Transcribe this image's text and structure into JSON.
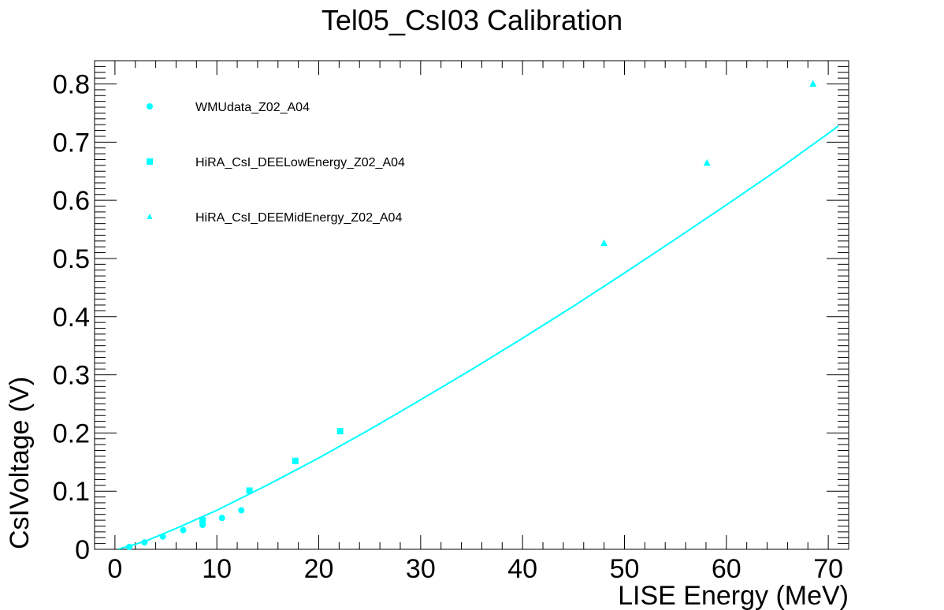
{
  "chart_data": {
    "type": "scatter",
    "title": "Tel05_CsI03 Calibration",
    "xlabel": "LISE Energy (MeV)",
    "ylabel": "CsIVoltage (V)",
    "xlim": [
      -2,
      72
    ],
    "ylim": [
      0,
      0.84
    ],
    "x_ticks": [
      0,
      10,
      20,
      30,
      40,
      50,
      60,
      70
    ],
    "x_tick_labels": [
      "0",
      "10",
      "20",
      "30",
      "40",
      "50",
      "60",
      "70"
    ],
    "y_ticks": [
      0,
      0.1,
      0.2,
      0.3,
      0.4,
      0.5,
      0.6,
      0.7,
      0.8
    ],
    "y_tick_labels": [
      "0",
      "0.1",
      "0.2",
      "0.3",
      "0.4",
      "0.5",
      "0.6",
      "0.7",
      "0.8"
    ],
    "grid": false,
    "legend_position": "top-left",
    "color": "#00ffff",
    "series": [
      {
        "name": "WMUdata_Z02_A04",
        "marker": "circle",
        "x": [
          1.4,
          2.9,
          4.7,
          6.7,
          8.6,
          10.5,
          12.4
        ],
        "y": [
          0.004,
          0.012,
          0.022,
          0.033,
          0.042,
          0.054,
          0.067
        ]
      },
      {
        "name": "HiRA_CsI_DEELowEnergy_Z02_A04",
        "marker": "square",
        "x": [
          8.6,
          13.2,
          17.7,
          22.1
        ],
        "y": [
          0.05,
          0.101,
          0.152,
          0.203
        ]
      },
      {
        "name": "HiRA_CsI_DEEMidEnergy_Z02_A04",
        "marker": "triangle",
        "x": [
          48.0,
          58.1,
          68.5
        ],
        "y": [
          0.526,
          0.664,
          0.8
        ]
      },
      {
        "name": "",
        "type": "line",
        "x": [
          0.3,
          3,
          6,
          10,
          15,
          20,
          25,
          30,
          35,
          40,
          45,
          50,
          55,
          60,
          65,
          70,
          71
        ],
        "y": [
          0.0,
          0.014,
          0.036,
          0.067,
          0.111,
          0.157,
          0.206,
          0.257,
          0.309,
          0.363,
          0.418,
          0.475,
          0.533,
          0.592,
          0.652,
          0.715,
          0.728
        ]
      }
    ]
  }
}
